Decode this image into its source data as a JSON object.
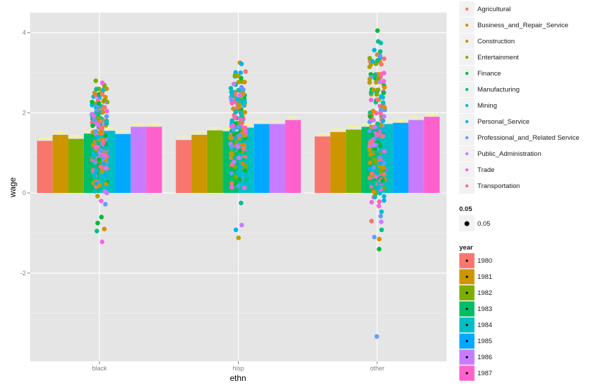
{
  "chart_data": {
    "type": "bar",
    "xlabel": "ethn",
    "ylabel": "wage",
    "ylim": [
      -4.2,
      4.5
    ],
    "yticks": [
      -2,
      0,
      2,
      4
    ],
    "categories": [
      "black",
      "hisp",
      "other"
    ],
    "bar_series_title": "year",
    "bar_series": [
      {
        "name": "1980",
        "color": "#F8766D",
        "values": [
          1.3,
          1.32,
          1.41
        ]
      },
      {
        "name": "1981",
        "color": "#CD9600",
        "values": [
          1.45,
          1.45,
          1.52
        ]
      },
      {
        "name": "1982",
        "color": "#7CAE00",
        "values": [
          1.35,
          1.56,
          1.58
        ]
      },
      {
        "name": "1983",
        "color": "#00BE67",
        "values": [
          1.48,
          1.54,
          1.65
        ]
      },
      {
        "name": "1984",
        "color": "#00BFC4",
        "values": [
          1.55,
          1.63,
          1.72
        ]
      },
      {
        "name": "1985",
        "color": "#00A9FF",
        "values": [
          1.47,
          1.72,
          1.75
        ]
      },
      {
        "name": "1986",
        "color": "#C77CFF",
        "values": [
          1.65,
          1.72,
          1.82
        ]
      },
      {
        "name": "1987",
        "color": "#FF61CC",
        "values": [
          1.65,
          1.82,
          1.9
        ]
      }
    ],
    "error_bar_color": "#FFFF66",
    "point_series_title": "",
    "point_series": [
      {
        "name": "Agricultural",
        "color": "#F8766D"
      },
      {
        "name": "Business_and_Repair_Service",
        "color": "#DE8C00"
      },
      {
        "name": "Construction",
        "color": "#B79F00"
      },
      {
        "name": "Entertainment",
        "color": "#7CAE00"
      },
      {
        "name": "Finance",
        "color": "#00BA38"
      },
      {
        "name": "Manufacturing",
        "color": "#00C08B"
      },
      {
        "name": "Mining",
        "color": "#00BFC4"
      },
      {
        "name": "Personal_Service",
        "color": "#00B4F0"
      },
      {
        "name": "Professional_and_Related Service",
        "color": "#619CFF"
      },
      {
        "name": "Public_Administration",
        "color": "#C77CFF"
      },
      {
        "name": "Trade",
        "color": "#F564E3"
      },
      {
        "name": "Transportation",
        "color": "#FF64B0"
      }
    ],
    "points": [
      {
        "group": "black",
        "min": -0.1,
        "max": 2.8,
        "outliers": [
          {
            "y": -0.9,
            "color": "#DE8C00"
          },
          {
            "y": -0.6,
            "color": "#00BA38"
          },
          {
            "y": -0.75,
            "color": "#00BA38"
          },
          {
            "y": -0.95,
            "color": "#00C08B"
          },
          {
            "y": -0.28,
            "color": "#619CFF"
          },
          {
            "y": -0.2,
            "color": "#F564E3"
          },
          {
            "y": -1.22,
            "color": "#F564E3"
          },
          {
            "y": 2.75,
            "color": "#F564E3"
          },
          {
            "y": 2.8,
            "color": "#7CAE00"
          },
          {
            "y": -0.08,
            "color": "#B79F00"
          }
        ]
      },
      {
        "group": "hisp",
        "min": 0.05,
        "max": 3.25,
        "outliers": [
          {
            "y": -1.12,
            "color": "#B79F00"
          },
          {
            "y": -0.25,
            "color": "#00C08B"
          },
          {
            "y": -0.92,
            "color": "#00B4F0"
          },
          {
            "y": -0.8,
            "color": "#C77CFF"
          },
          {
            "y": 3.25,
            "color": "#DE8C00"
          },
          {
            "y": 3.22,
            "color": "#00B4F0"
          },
          {
            "y": 2.92,
            "color": "#B79F00"
          }
        ]
      },
      {
        "group": "other",
        "min": -0.7,
        "max": 3.8,
        "outliers": [
          {
            "y": -1.15,
            "color": "#DE8C00"
          },
          {
            "y": -1.4,
            "color": "#00BA38"
          },
          {
            "y": -0.92,
            "color": "#00C08B"
          },
          {
            "y": -1.1,
            "color": "#619CFF"
          },
          {
            "y": -3.58,
            "color": "#619CFF"
          },
          {
            "y": 4.05,
            "color": "#00BA38"
          },
          {
            "y": 3.78,
            "color": "#00C08B"
          },
          {
            "y": 3.45,
            "color": "#DE8C00"
          },
          {
            "y": 3.42,
            "color": "#619CFF"
          },
          {
            "y": -0.72,
            "color": "#C77CFF"
          },
          {
            "y": -0.7,
            "color": "#F8766D"
          }
        ]
      }
    ],
    "size_legend_title": "0.05",
    "size_legend_label": "0.05"
  }
}
